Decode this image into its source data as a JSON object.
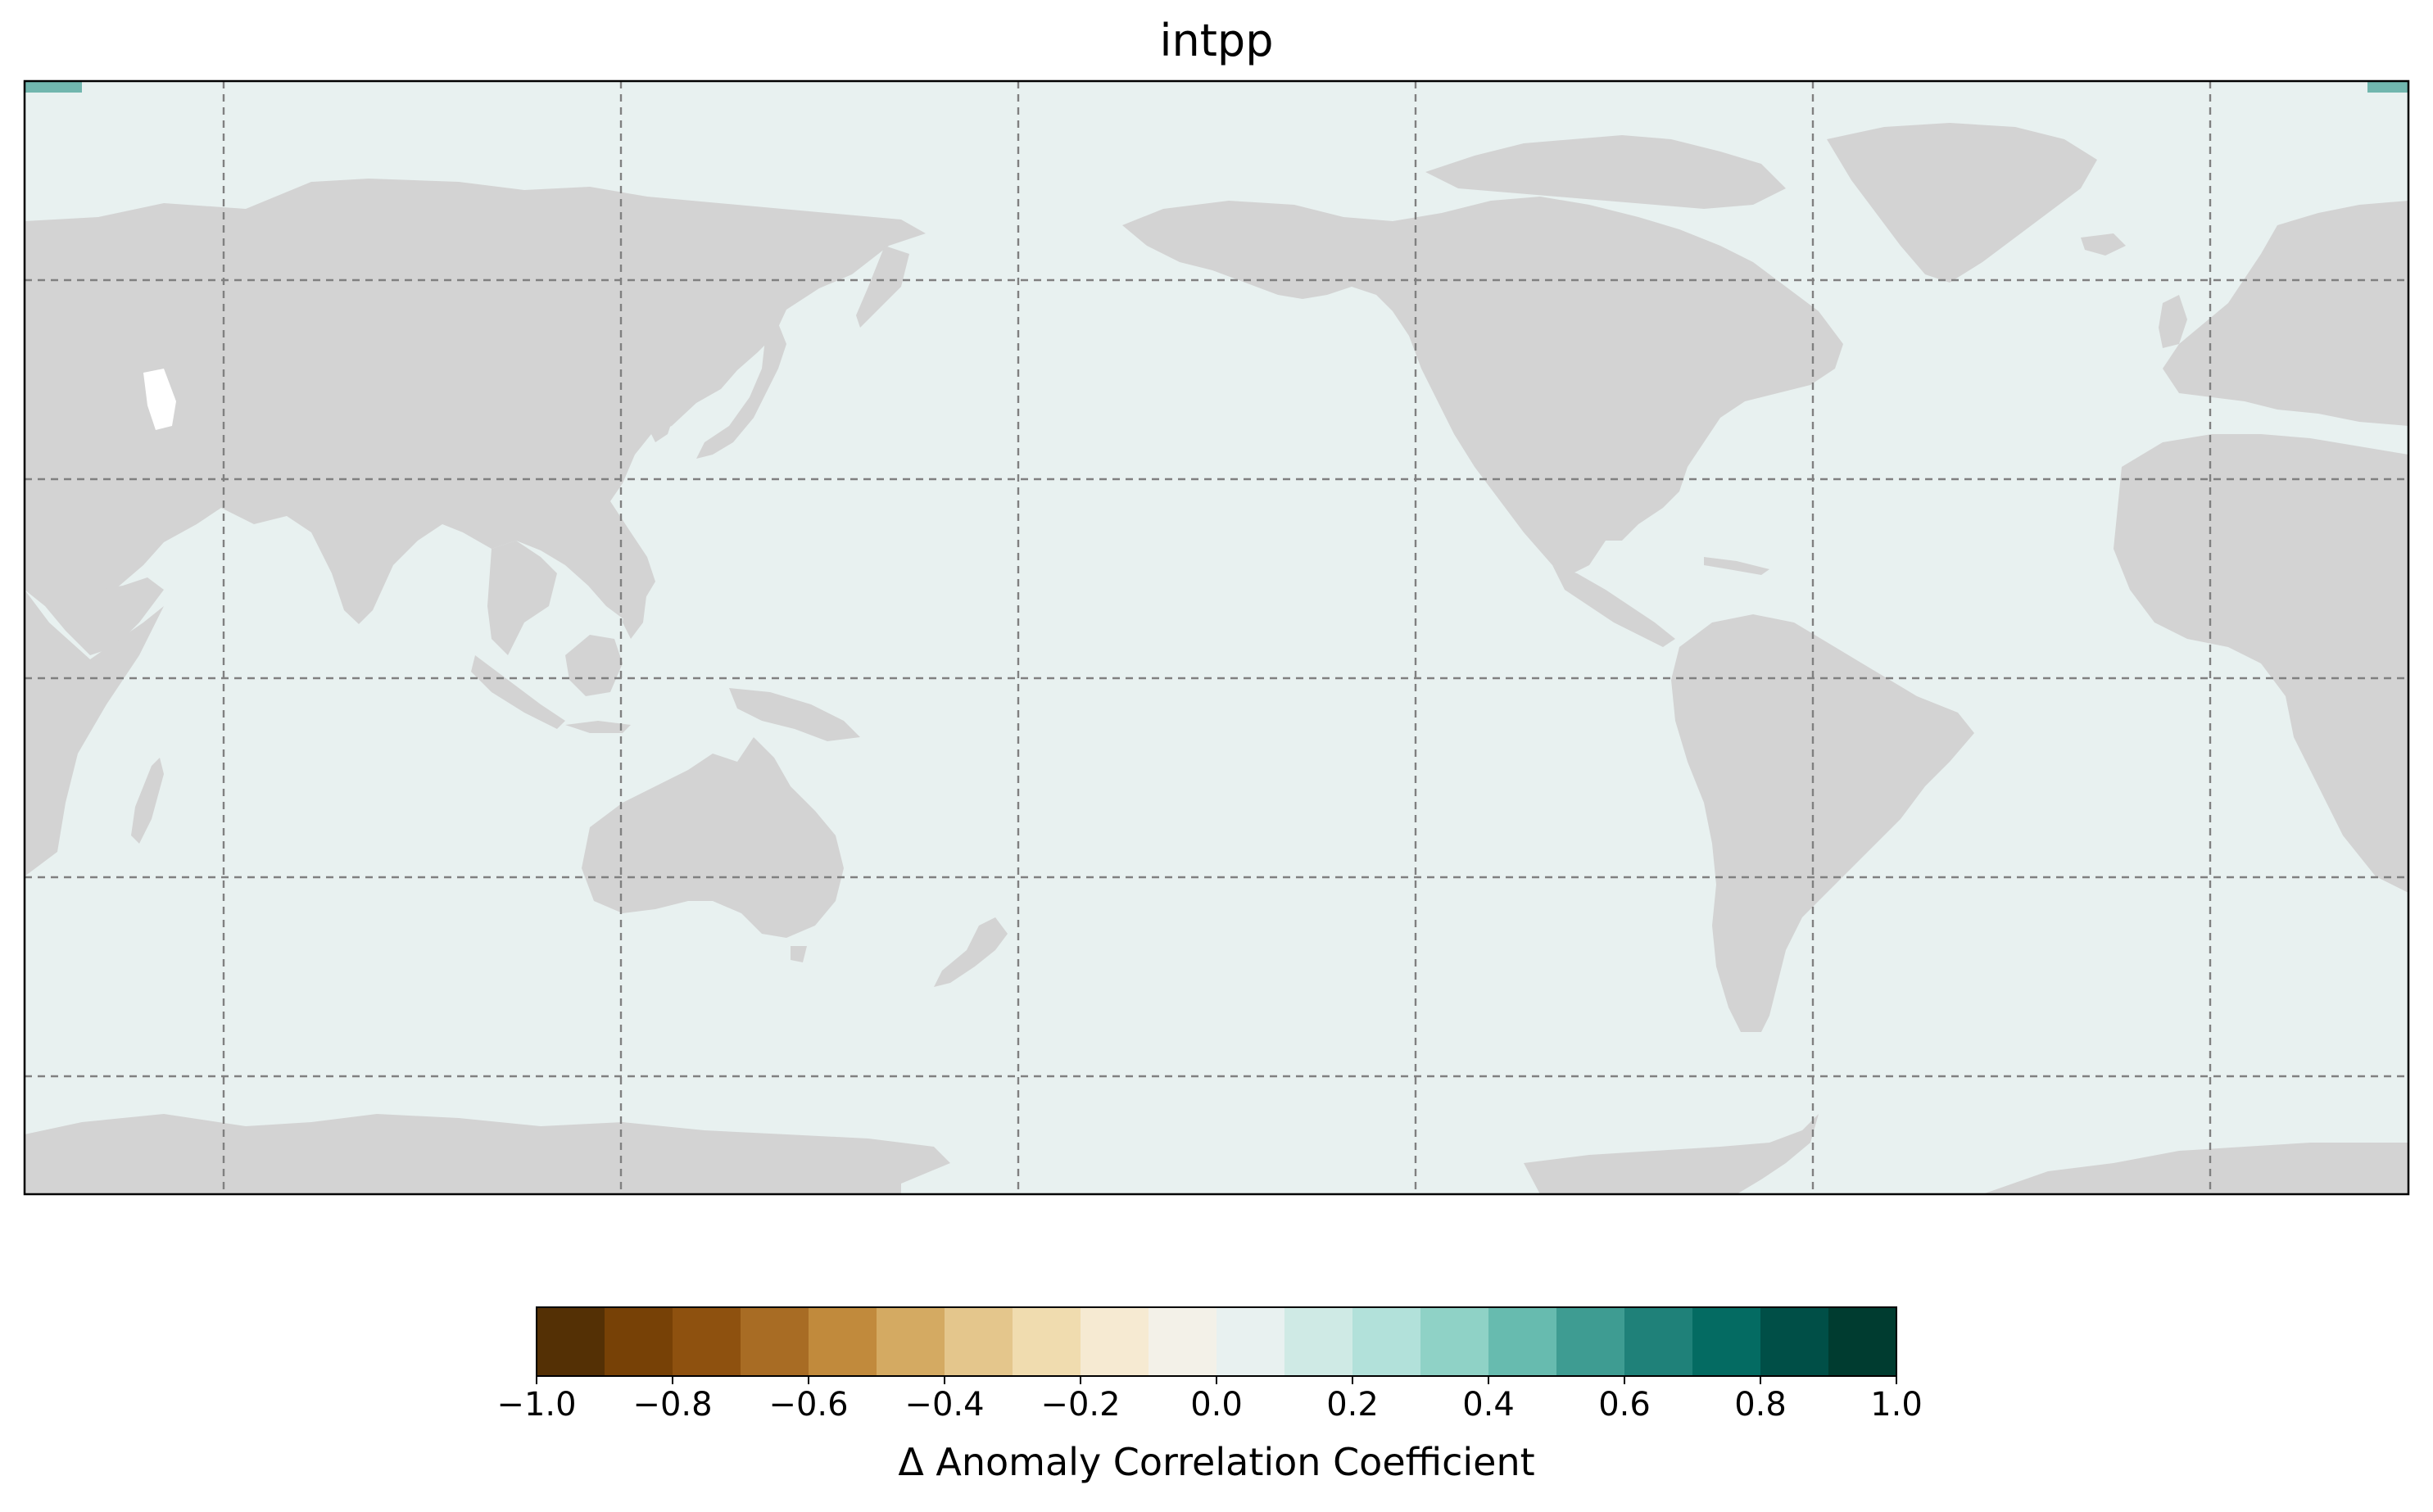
{
  "title": "intpp",
  "map": {
    "projection": "plate-carree",
    "central_longitude": 180,
    "ocean_value": 0.0,
    "land_color": "#d3d3d3",
    "ocean_color": "#e8f1f0",
    "gridlines": {
      "style": "dashed",
      "color": "#808080",
      "longitudes": [
        -150,
        -90,
        -30,
        30,
        90,
        150
      ],
      "latitudes": [
        60,
        30,
        0,
        -30,
        -60
      ]
    }
  },
  "chart_data": {
    "type": "heatmap",
    "title": "intpp",
    "colorbar": {
      "label": "Δ Anomaly Correlation Coefficient",
      "range": [
        -1.0,
        1.0
      ],
      "levels": [
        -1.0,
        -0.9,
        -0.8,
        -0.7,
        -0.6,
        -0.5,
        -0.4,
        -0.3,
        -0.2,
        -0.1,
        0.0,
        0.1,
        0.2,
        0.3,
        0.4,
        0.5,
        0.6,
        0.7,
        0.8,
        0.9,
        1.0
      ],
      "colors": [
        "#543005",
        "#774106",
        "#8e510f",
        "#a86c24",
        "#c18a3c",
        "#d4aa62",
        "#e4c68c",
        "#f0dcaf",
        "#f6ead2",
        "#f3f1e8",
        "#e8f1f0",
        "#cfeae5",
        "#b2e1da",
        "#8fd2c6",
        "#67bbaf",
        "#3e9c92",
        "#1f8179",
        "#046b62",
        "#004f47",
        "#003c30"
      ],
      "tick_labels": [
        "−1.0",
        "−0.8",
        "−0.6",
        "−0.4",
        "−0.2",
        "0.0",
        "0.2",
        "0.4",
        "0.6",
        "0.8",
        "1.0"
      ],
      "tick_values": [
        -1.0,
        -0.8,
        -0.6,
        -0.4,
        -0.2,
        0.0,
        0.2,
        0.4,
        0.6,
        0.8,
        1.0
      ]
    }
  }
}
